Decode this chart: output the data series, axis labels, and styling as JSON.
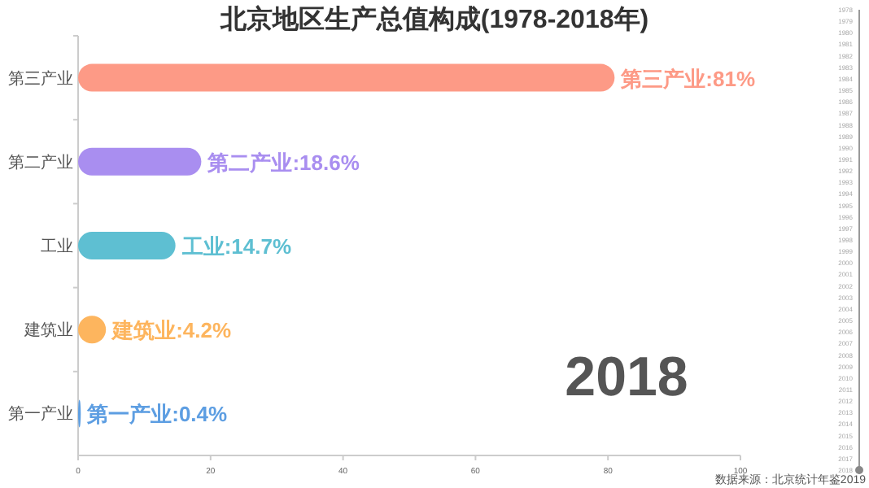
{
  "chart_data": {
    "type": "bar",
    "orientation": "horizontal",
    "title": "北京地区生产总值构成(1978-2018年)",
    "categories": [
      "第三产业",
      "第二产业",
      "工业",
      "建筑业",
      "第一产业"
    ],
    "values": [
      81,
      18.6,
      14.7,
      4.2,
      0.4
    ],
    "colors": [
      "#fd9a86",
      "#a98ef0",
      "#5ebfd2",
      "#fdb55e",
      "#5d9ee2"
    ],
    "value_labels": [
      "第三产业:81%",
      "第二产业:18.6%",
      "工业:14.7%",
      "建筑业:4.2%",
      "第一产业:0.4%"
    ],
    "xlim": [
      0,
      100
    ],
    "xticks": [
      0,
      20,
      40,
      60,
      80,
      100
    ],
    "grid": false,
    "annotations": [
      "2018",
      "数据来源：北京统计年鉴2019",
      "1978",
      "1979",
      "1980",
      "1981",
      "1982",
      "1983",
      "1984",
      "1985",
      "1986",
      "1987",
      "1988",
      "1989",
      "1990",
      "1991",
      "1992",
      "1993",
      "1994",
      "1995",
      "1996",
      "1997",
      "1998",
      "1999",
      "2000",
      "2001",
      "2002",
      "2003",
      "2004",
      "2005",
      "2006",
      "2007",
      "2008",
      "2009",
      "2010",
      "2011",
      "2012",
      "2013",
      "2014",
      "2015",
      "2016",
      "2017",
      "2018"
    ]
  }
}
